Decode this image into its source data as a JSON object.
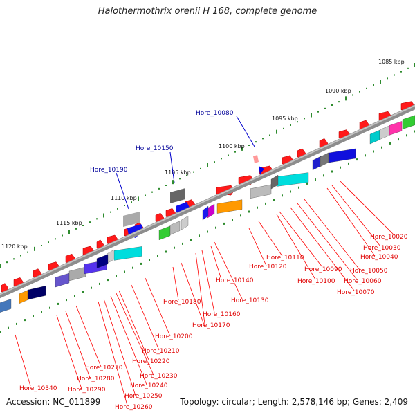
{
  "title": "Halothermothrix orenii H 168, complete genome",
  "footer": {
    "accession": "Accession: NC_011899",
    "summary": "Topology: circular; Length: 2,578,146 bp; Genes: 2,409"
  },
  "colors": {
    "backbone": "#8a8a8a",
    "scale_tick": "#2e8b2e",
    "forward_gene": "#ff1a1a",
    "label_line_red": "#ff0000",
    "label_line_blue": "#0000cc",
    "label_text_red": "#e00000",
    "label_text_blue": "#000099"
  },
  "scale_labels": [
    "1085 kbp",
    "1090 kbp",
    "1095 kbp",
    "1100 kbp",
    "1105 kbp",
    "1110 kbp",
    "1115 kbp",
    "1120 kbp"
  ],
  "gene_labels_top": [
    "Hore_10080",
    "Hore_10150",
    "Hore_10190"
  ],
  "gene_labels_bottom": [
    "Hore_10020",
    "Hore_10030",
    "Hore_10040",
    "Hore_10050",
    "Hore_10060",
    "Hore_10070",
    "Hore_10090",
    "Hore_10100",
    "Hore_10110",
    "Hore_10120",
    "Hore_10130",
    "Hore_10140",
    "Hore_10160",
    "Hore_10170",
    "Hore_10180",
    "Hore_10200",
    "Hore_10210",
    "Hore_10220",
    "Hore_10230",
    "Hore_10240",
    "Hore_10250",
    "Hore_10260",
    "Hore_10270",
    "Hore_10280",
    "Hore_10290",
    "Hore_10340"
  ]
}
